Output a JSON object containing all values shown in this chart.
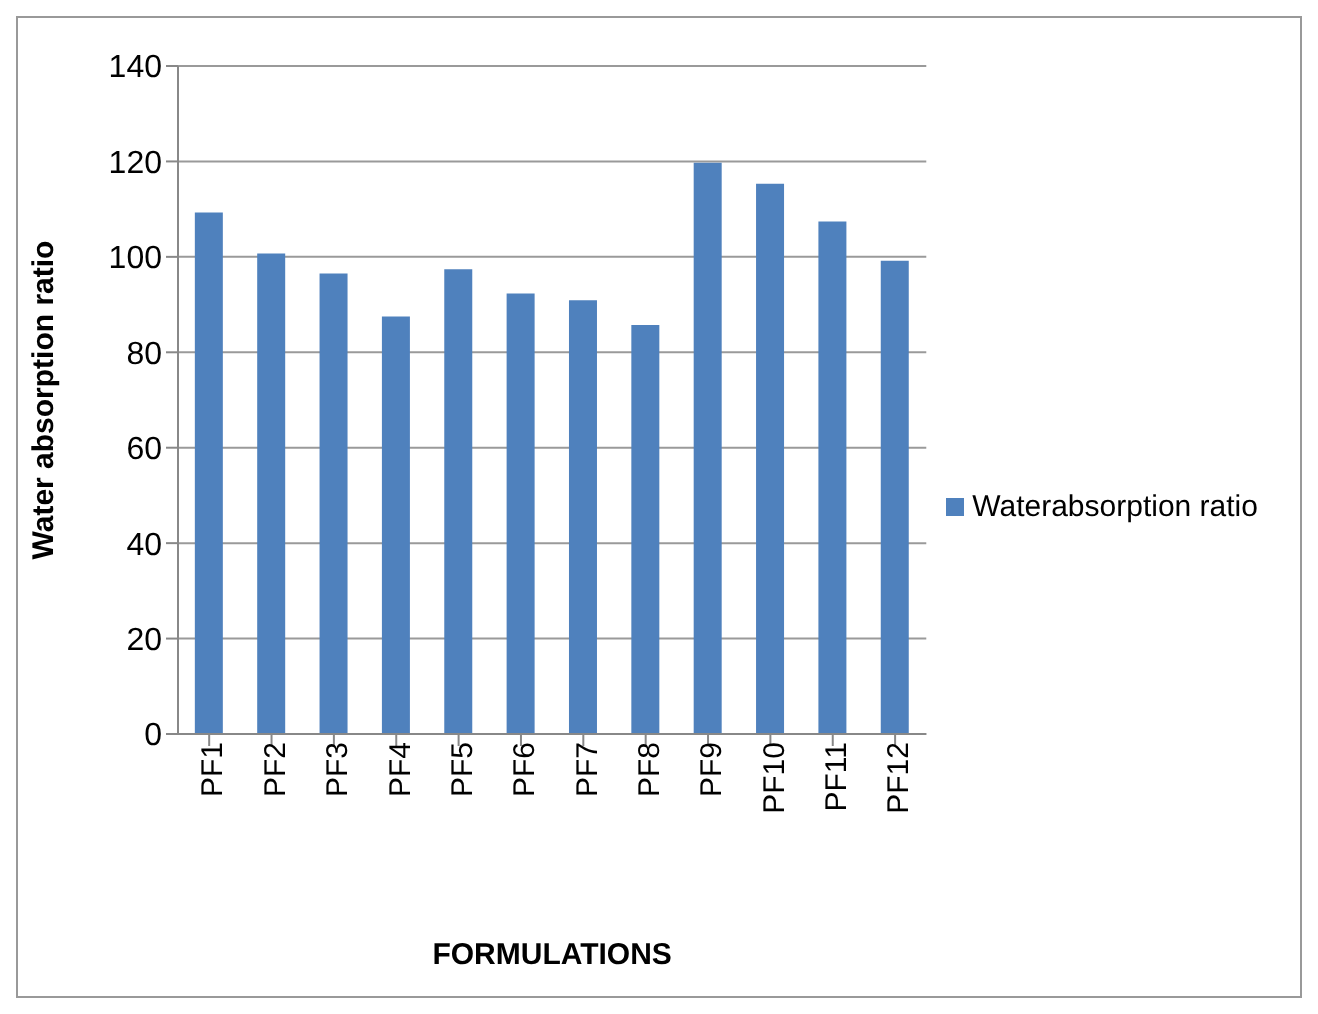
{
  "chart_data": {
    "type": "bar",
    "xlabel": "FORMULATIONS",
    "ylabel": "Water absorption ratio",
    "categories": [
      "PF1",
      "PF2",
      "PF3",
      "PF4",
      "PF5",
      "PF6",
      "PF7",
      "PF8",
      "PF9",
      "PF10",
      "PF11",
      "PF12"
    ],
    "series": [
      {
        "name": "Waterabsorption ratio",
        "color": "#4f81bd",
        "values": [
          109.3,
          100.7,
          96.5,
          87.5,
          97.4,
          92.3,
          90.9,
          85.7,
          119.7,
          115.3,
          107.4,
          99.2
        ]
      }
    ],
    "ylim": [
      0,
      140
    ],
    "yticks": [
      0,
      20,
      40,
      60,
      80,
      100,
      120,
      140
    ],
    "grid": "y",
    "legend": "right"
  }
}
